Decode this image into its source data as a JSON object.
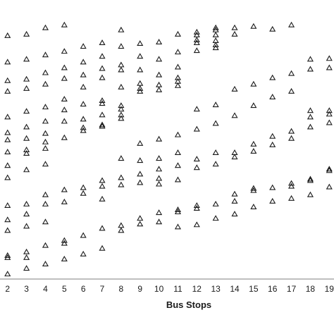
{
  "chart_data": {
    "type": "scatter",
    "title": "",
    "xlabel": "Bus Stops",
    "ylabel": "",
    "marker": "triangle-open",
    "grid": false,
    "legend": "none",
    "x_ticks": [
      2,
      3,
      4,
      5,
      6,
      7,
      8,
      9,
      10,
      11,
      12,
      13,
      14,
      15,
      16,
      17,
      18,
      19
    ],
    "xlim": [
      1.6,
      19.25
    ],
    "ylim": [
      0,
      390
    ],
    "colors": {
      "marker": "#1a1a1a",
      "frame": "#7f7f7f",
      "text": "#1a1a1a"
    },
    "points": [
      [
        2,
        340
      ],
      [
        2,
        303
      ],
      [
        2,
        277
      ],
      [
        2,
        262
      ],
      [
        2,
        226
      ],
      [
        2,
        204
      ],
      [
        2,
        194
      ],
      [
        2,
        177
      ],
      [
        2,
        158
      ],
      [
        2,
        141
      ],
      [
        2,
        102
      ],
      [
        2,
        82
      ],
      [
        2,
        67
      ],
      [
        2,
        32
      ],
      [
        2,
        29
      ],
      [
        2,
        6
      ],
      [
        3,
        342
      ],
      [
        3,
        307
      ],
      [
        3,
        279
      ],
      [
        3,
        266
      ],
      [
        3,
        234
      ],
      [
        3,
        212
      ],
      [
        3,
        196
      ],
      [
        3,
        180
      ],
      [
        3,
        175
      ],
      [
        3,
        152
      ],
      [
        3,
        104
      ],
      [
        3,
        90
      ],
      [
        3,
        73
      ],
      [
        3,
        37
      ],
      [
        3,
        29
      ],
      [
        3,
        14
      ],
      [
        4,
        351
      ],
      [
        4,
        313
      ],
      [
        4,
        288
      ],
      [
        4,
        272
      ],
      [
        4,
        240
      ],
      [
        4,
        220
      ],
      [
        4,
        203
      ],
      [
        4,
        191
      ],
      [
        4,
        182
      ],
      [
        4,
        160
      ],
      [
        4,
        117
      ],
      [
        4,
        104
      ],
      [
        4,
        79
      ],
      [
        4,
        46
      ],
      [
        4,
        20
      ],
      [
        5,
        355
      ],
      [
        5,
        318
      ],
      [
        5,
        295
      ],
      [
        5,
        280
      ],
      [
        5,
        251
      ],
      [
        5,
        236
      ],
      [
        5,
        220
      ],
      [
        5,
        197
      ],
      [
        5,
        124
      ],
      [
        5,
        107
      ],
      [
        5,
        53
      ],
      [
        5,
        49
      ],
      [
        5,
        27
      ],
      [
        6,
        325
      ],
      [
        6,
        303
      ],
      [
        6,
        285
      ],
      [
        6,
        268
      ],
      [
        6,
        244
      ],
      [
        6,
        223
      ],
      [
        6,
        211
      ],
      [
        6,
        207
      ],
      [
        6,
        127
      ],
      [
        6,
        119
      ],
      [
        6,
        60
      ],
      [
        6,
        34
      ],
      [
        7,
        330
      ],
      [
        7,
        311
      ],
      [
        7,
        294
      ],
      [
        7,
        281
      ],
      [
        7,
        249
      ],
      [
        7,
        245
      ],
      [
        7,
        229
      ],
      [
        7,
        215
      ],
      [
        7,
        213
      ],
      [
        7,
        137
      ],
      [
        7,
        129
      ],
      [
        7,
        111
      ],
      [
        7,
        70
      ],
      [
        7,
        42
      ],
      [
        8,
        348
      ],
      [
        8,
        325
      ],
      [
        8,
        299
      ],
      [
        8,
        292
      ],
      [
        8,
        268
      ],
      [
        8,
        242
      ],
      [
        8,
        237
      ],
      [
        8,
        229
      ],
      [
        8,
        224
      ],
      [
        8,
        168
      ],
      [
        8,
        141
      ],
      [
        8,
        131
      ],
      [
        8,
        74
      ],
      [
        8,
        67
      ],
      [
        9,
        329
      ],
      [
        9,
        311
      ],
      [
        9,
        292
      ],
      [
        9,
        273
      ],
      [
        9,
        266
      ],
      [
        9,
        262
      ],
      [
        9,
        189
      ],
      [
        9,
        165
      ],
      [
        9,
        146
      ],
      [
        9,
        134
      ],
      [
        9,
        84
      ],
      [
        9,
        76
      ],
      [
        10,
        331
      ],
      [
        10,
        307
      ],
      [
        10,
        285
      ],
      [
        10,
        271
      ],
      [
        10,
        264
      ],
      [
        10,
        195
      ],
      [
        10,
        168
      ],
      [
        10,
        153
      ],
      [
        10,
        140
      ],
      [
        10,
        132
      ],
      [
        10,
        92
      ],
      [
        10,
        79
      ],
      [
        11,
        342
      ],
      [
        11,
        317
      ],
      [
        11,
        296
      ],
      [
        11,
        281
      ],
      [
        11,
        276
      ],
      [
        11,
        270
      ],
      [
        11,
        201
      ],
      [
        11,
        176
      ],
      [
        11,
        158
      ],
      [
        11,
        138
      ],
      [
        11,
        96
      ],
      [
        11,
        93
      ],
      [
        11,
        72
      ],
      [
        12,
        345
      ],
      [
        12,
        341
      ],
      [
        12,
        334
      ],
      [
        12,
        330
      ],
      [
        12,
        319
      ],
      [
        12,
        237
      ],
      [
        12,
        209
      ],
      [
        12,
        167
      ],
      [
        12,
        155
      ],
      [
        12,
        98
      ],
      [
        12,
        102
      ],
      [
        12,
        75
      ],
      [
        13,
        351
      ],
      [
        13,
        348
      ],
      [
        13,
        341
      ],
      [
        13,
        333
      ],
      [
        13,
        327
      ],
      [
        13,
        323
      ],
      [
        13,
        243
      ],
      [
        13,
        217
      ],
      [
        13,
        176
      ],
      [
        13,
        160
      ],
      [
        13,
        104
      ],
      [
        13,
        84
      ],
      [
        14,
        351
      ],
      [
        14,
        342
      ],
      [
        14,
        265
      ],
      [
        14,
        228
      ],
      [
        14,
        176
      ],
      [
        14,
        170
      ],
      [
        14,
        118
      ],
      [
        14,
        108
      ],
      [
        14,
        90
      ],
      [
        15,
        353
      ],
      [
        15,
        272
      ],
      [
        15,
        242
      ],
      [
        15,
        188
      ],
      [
        15,
        178
      ],
      [
        15,
        126
      ],
      [
        15,
        123
      ],
      [
        15,
        100
      ],
      [
        16,
        349
      ],
      [
        16,
        281
      ],
      [
        16,
        254
      ],
      [
        16,
        199
      ],
      [
        16,
        187
      ],
      [
        16,
        127
      ],
      [
        16,
        108
      ],
      [
        17,
        355
      ],
      [
        17,
        287
      ],
      [
        17,
        262
      ],
      [
        17,
        206
      ],
      [
        17,
        196
      ],
      [
        17,
        133
      ],
      [
        17,
        129
      ],
      [
        17,
        112
      ],
      [
        18,
        307
      ],
      [
        18,
        293
      ],
      [
        18,
        235
      ],
      [
        18,
        226
      ],
      [
        18,
        212
      ],
      [
        18,
        137
      ],
      [
        18,
        139
      ],
      [
        18,
        117
      ],
      [
        19,
        308
      ],
      [
        19,
        295
      ],
      [
        19,
        235
      ],
      [
        19,
        230
      ],
      [
        19,
        218
      ],
      [
        19,
        153
      ],
      [
        19,
        151
      ],
      [
        19,
        128
      ]
    ]
  }
}
